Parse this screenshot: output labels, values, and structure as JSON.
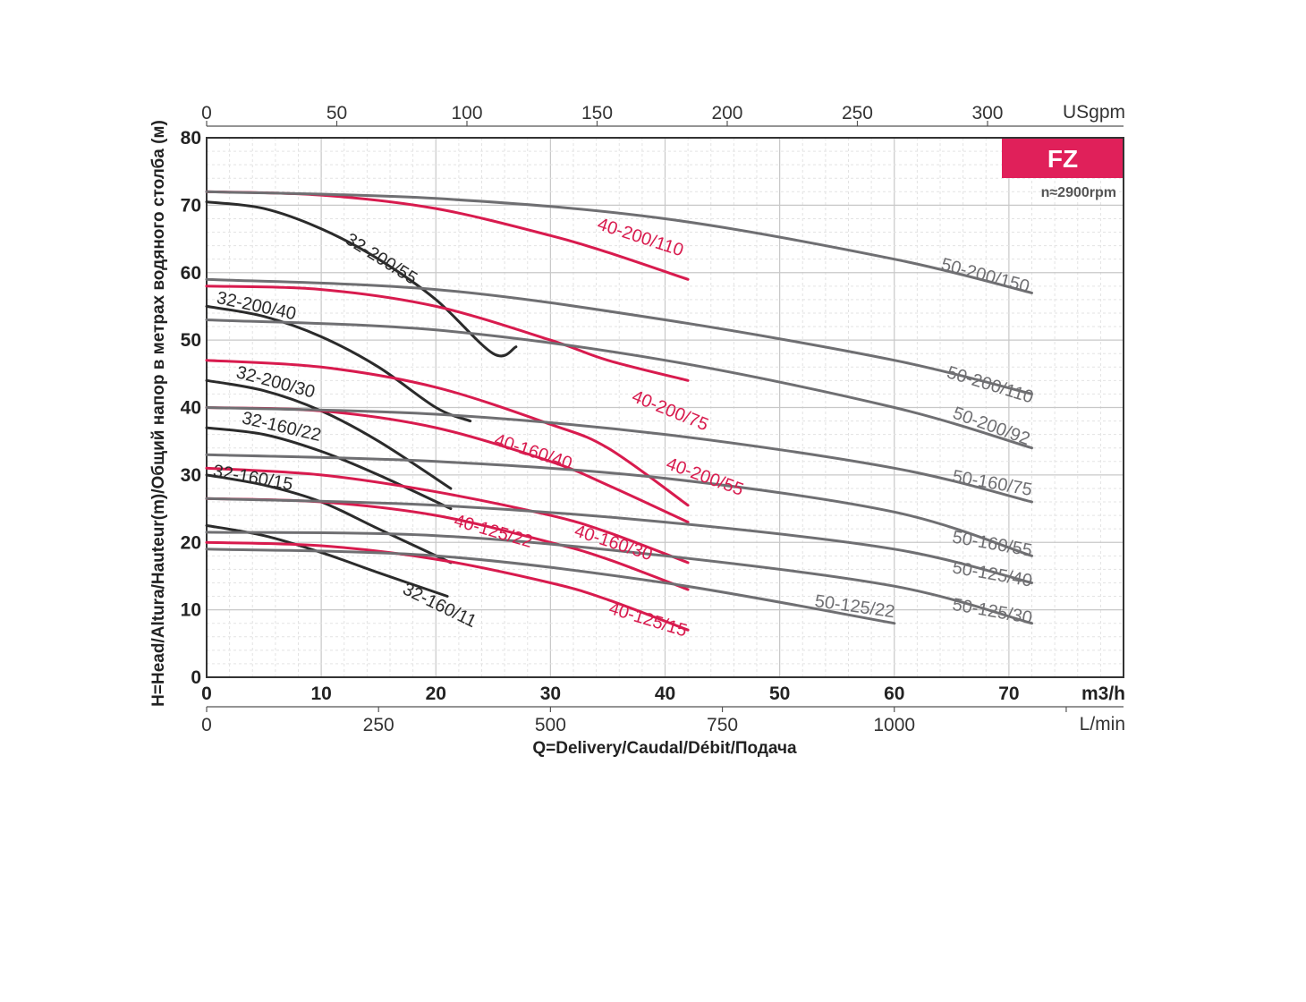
{
  "chart_data": {
    "type": "line",
    "badge": "FZ",
    "speed": "n≈2900rpm",
    "colors": {
      "black": "#2b2b2b",
      "red": "#d81b4e",
      "gray": "#6f6f72",
      "badge": "#e0205a"
    },
    "xlabel": "Q=Delivery/Caudal/Débit/Подача",
    "ylabel": "H=Head/Altura/Hauteur(m)/Общий напор в метрах водяного столба (м)",
    "x_unit": "m3/h",
    "xlim": [
      0,
      80
    ],
    "ylim": [
      0,
      80
    ],
    "x_ticks": [
      "0",
      "10",
      "20",
      "30",
      "40",
      "50",
      "60",
      "70"
    ],
    "y_ticks": [
      "0",
      "10",
      "20",
      "30",
      "40",
      "50",
      "60",
      "70",
      "80"
    ],
    "top_axis": {
      "unit": "USgpm",
      "ticks": [
        "0",
        "50",
        "100",
        "150",
        "200",
        "250",
        "300"
      ],
      "values": [
        0,
        50,
        100,
        150,
        200,
        250,
        300
      ]
    },
    "bottom_axis2": {
      "unit": "L/min",
      "ticks": [
        "0",
        "250",
        "500",
        "750",
        "1000"
      ],
      "values": [
        0,
        250,
        500,
        750,
        1000
      ]
    },
    "grid": true,
    "series": [
      {
        "name": "32-200/55",
        "color": "black",
        "x": [
          0,
          5,
          10,
          15,
          20,
          25,
          27
        ],
        "y": [
          70.5,
          69.5,
          66.5,
          62,
          56,
          48,
          49
        ]
      },
      {
        "name": "32-200/40",
        "color": "black",
        "x": [
          0,
          5,
          10,
          15,
          20,
          23
        ],
        "y": [
          55,
          53.5,
          50.5,
          46,
          40,
          38
        ]
      },
      {
        "name": "32-200/30",
        "color": "black",
        "x": [
          0,
          5,
          10,
          15,
          21.3
        ],
        "y": [
          44,
          42.5,
          39.5,
          35,
          28
        ]
      },
      {
        "name": "32-160/22",
        "color": "black",
        "x": [
          0,
          5,
          10,
          15,
          21.3
        ],
        "y": [
          37,
          36,
          33.5,
          30,
          25
        ]
      },
      {
        "name": "32-160/15",
        "color": "black",
        "x": [
          0,
          5,
          10,
          15,
          21.3
        ],
        "y": [
          30,
          28.5,
          26,
          22,
          17
        ]
      },
      {
        "name": "32-160/11",
        "color": "black",
        "x": [
          0,
          5,
          10,
          15,
          21
        ],
        "y": [
          22.5,
          21,
          18.5,
          15.5,
          12
        ]
      },
      {
        "name": "40-200/110",
        "color": "red",
        "x": [
          0,
          10,
          20,
          30,
          35,
          42
        ],
        "y": [
          72,
          71.5,
          69.5,
          65.5,
          63,
          59
        ]
      },
      {
        "name": "40-200/75",
        "color": "red",
        "x": [
          0,
          10,
          20,
          30,
          35,
          42
        ],
        "y": [
          58,
          57.5,
          55,
          50,
          47,
          44
        ]
      },
      {
        "name": "40-200/55",
        "color": "red",
        "x": [
          0,
          10,
          20,
          30,
          35,
          42
        ],
        "y": [
          47,
          46,
          43,
          37.5,
          34,
          25.5
        ]
      },
      {
        "name": "40-160/40",
        "color": "red",
        "x": [
          0,
          10,
          20,
          30,
          35,
          42
        ],
        "y": [
          40,
          39.5,
          37,
          32,
          28.5,
          23
        ]
      },
      {
        "name": "40-160/30",
        "color": "red",
        "x": [
          0,
          10,
          20,
          30,
          35,
          42
        ],
        "y": [
          31,
          30,
          27.5,
          24,
          21.5,
          17
        ]
      },
      {
        "name": "40-125/22",
        "color": "red",
        "x": [
          0,
          10,
          20,
          30,
          35,
          42
        ],
        "y": [
          26.5,
          26,
          24,
          20,
          17.5,
          13
        ]
      },
      {
        "name": "40-125/15",
        "color": "red",
        "x": [
          0,
          10,
          20,
          30,
          35,
          42
        ],
        "y": [
          20,
          19.5,
          17.5,
          14,
          11.5,
          7
        ]
      },
      {
        "name": "50-200/150",
        "color": "gray",
        "x": [
          0,
          20,
          40,
          60,
          72
        ],
        "y": [
          72,
          71,
          68,
          62,
          57
        ]
      },
      {
        "name": "50-200/110",
        "color": "gray",
        "x": [
          0,
          20,
          40,
          60,
          72
        ],
        "y": [
          59,
          57.5,
          53,
          47,
          42
        ]
      },
      {
        "name": "50-200/92",
        "color": "gray",
        "x": [
          0,
          20,
          40,
          60,
          72
        ],
        "y": [
          53,
          51.5,
          47,
          40,
          34
        ]
      },
      {
        "name": "50-160/75",
        "color": "gray",
        "x": [
          0,
          20,
          40,
          60,
          72
        ],
        "y": [
          40,
          39,
          36,
          31,
          26
        ]
      },
      {
        "name": "50-160/55",
        "color": "gray",
        "x": [
          0,
          20,
          40,
          60,
          72
        ],
        "y": [
          33,
          32,
          29.5,
          24.5,
          18
        ]
      },
      {
        "name": "50-125/40",
        "color": "gray",
        "x": [
          0,
          20,
          40,
          60,
          72
        ],
        "y": [
          26.5,
          25.5,
          23,
          19,
          14
        ]
      },
      {
        "name": "50-125/30",
        "color": "gray",
        "x": [
          0,
          20,
          40,
          60,
          72
        ],
        "y": [
          21.5,
          21,
          18,
          13.5,
          8
        ]
      },
      {
        "name": "50-125/22",
        "color": "gray",
        "x": [
          0,
          20,
          40,
          60
        ],
        "y": [
          19,
          18,
          14,
          8
        ]
      }
    ]
  }
}
